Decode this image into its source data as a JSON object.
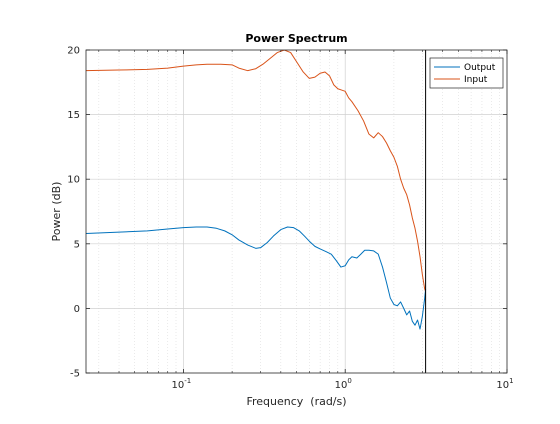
{
  "chart_data": {
    "type": "line",
    "title": "Power Spectrum",
    "xlabel": "Frequency  (rad/s)",
    "ylabel": "Power (dB)",
    "xscale": "log",
    "xlim": [
      0.025,
      10
    ],
    "ylim": [
      -5,
      20
    ],
    "yticks": [
      -5,
      0,
      5,
      10,
      15,
      20
    ],
    "xticks": [
      {
        "value": 0.1,
        "base": "10",
        "exp": "-1"
      },
      {
        "value": 1,
        "base": "10",
        "exp": "0"
      },
      {
        "value": 10,
        "base": "10",
        "exp": "1"
      }
    ],
    "grid": true,
    "minor_grid": true,
    "legend_position": "top-right",
    "vertical_line_x": 3.14,
    "series": [
      {
        "name": "Output",
        "color": "#0072BD",
        "x": [
          0.025,
          0.04,
          0.06,
          0.08,
          0.1,
          0.12,
          0.14,
          0.16,
          0.18,
          0.2,
          0.22,
          0.25,
          0.28,
          0.3,
          0.33,
          0.36,
          0.4,
          0.44,
          0.48,
          0.52,
          0.56,
          0.6,
          0.65,
          0.7,
          0.76,
          0.82,
          0.88,
          0.94,
          1.0,
          1.05,
          1.1,
          1.18,
          1.25,
          1.32,
          1.4,
          1.5,
          1.6,
          1.7,
          1.8,
          1.9,
          2.0,
          2.1,
          2.2,
          2.3,
          2.4,
          2.5,
          2.6,
          2.7,
          2.8,
          2.9,
          3.0,
          3.1,
          3.14
        ],
        "y": [
          5.8,
          5.9,
          6.0,
          6.15,
          6.25,
          6.3,
          6.3,
          6.2,
          6.0,
          5.7,
          5.3,
          4.9,
          4.65,
          4.7,
          5.1,
          5.6,
          6.1,
          6.3,
          6.25,
          6.0,
          5.6,
          5.2,
          4.8,
          4.6,
          4.4,
          4.2,
          3.7,
          3.2,
          3.3,
          3.75,
          4.0,
          3.9,
          4.2,
          4.5,
          4.5,
          4.45,
          4.2,
          3.2,
          2.0,
          0.8,
          0.3,
          0.2,
          0.5,
          0.0,
          -0.5,
          -0.2,
          -1.0,
          -1.3,
          -0.9,
          -1.6,
          -0.6,
          0.8,
          1.5
        ]
      },
      {
        "name": "Input",
        "color": "#D95319",
        "x": [
          0.025,
          0.04,
          0.06,
          0.08,
          0.1,
          0.12,
          0.14,
          0.17,
          0.2,
          0.22,
          0.25,
          0.28,
          0.31,
          0.34,
          0.38,
          0.42,
          0.46,
          0.5,
          0.55,
          0.6,
          0.65,
          0.7,
          0.75,
          0.8,
          0.85,
          0.9,
          0.95,
          1.0,
          1.05,
          1.1,
          1.2,
          1.3,
          1.4,
          1.5,
          1.6,
          1.7,
          1.8,
          1.9,
          2.0,
          2.1,
          2.2,
          2.3,
          2.4,
          2.5,
          2.6,
          2.7,
          2.8,
          2.9,
          3.0,
          3.1,
          3.14
        ],
        "y": [
          18.4,
          18.45,
          18.5,
          18.6,
          18.75,
          18.85,
          18.9,
          18.9,
          18.85,
          18.6,
          18.4,
          18.55,
          18.9,
          19.3,
          19.8,
          20.0,
          19.8,
          19.1,
          18.3,
          17.8,
          17.9,
          18.2,
          18.3,
          18.0,
          17.3,
          17.0,
          16.9,
          16.8,
          16.3,
          16.0,
          15.3,
          14.5,
          13.5,
          13.2,
          13.6,
          13.3,
          12.8,
          12.2,
          11.7,
          11.0,
          10.0,
          9.3,
          8.8,
          8.0,
          7.0,
          6.2,
          5.2,
          4.0,
          2.6,
          1.5,
          1.3
        ]
      }
    ]
  }
}
